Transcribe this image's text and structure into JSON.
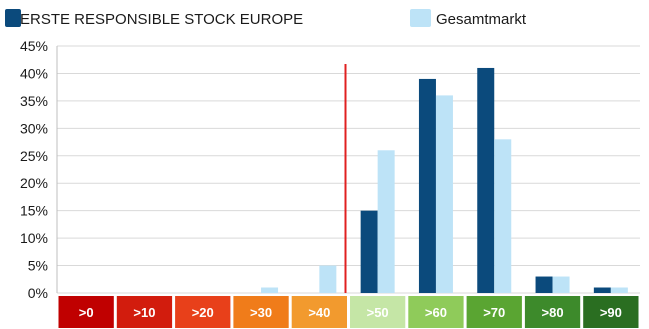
{
  "chart_data": {
    "type": "bar",
    "categories": [
      ">0",
      ">10",
      ">20",
      ">30",
      ">40",
      ">50",
      ">60",
      ">70",
      ">80",
      ">90"
    ],
    "category_colors": [
      "#c00000",
      "#d21c0d",
      "#e8401a",
      "#f07c1a",
      "#f29a2e",
      "#c5e6a6",
      "#8fcb5a",
      "#5aa532",
      "#3d8a2b",
      "#2a6e21"
    ],
    "series": [
      {
        "name": "ERSTE RESPONSIBLE STOCK EUROPE",
        "color": "#0b4a7c",
        "values": [
          0,
          0,
          0,
          0,
          0,
          15,
          39,
          41,
          3,
          1
        ]
      },
      {
        "name": "Gesamtmarkt",
        "color": "#bde3f7",
        "values": [
          0,
          0,
          0,
          1,
          5,
          26,
          36,
          28,
          3,
          1
        ]
      }
    ],
    "y_ticks": [
      "0%",
      "5%",
      "10%",
      "15%",
      "20%",
      "25%",
      "30%",
      "35%",
      "40%",
      "45%"
    ],
    "ylim": [
      0,
      45
    ],
    "reference_line": {
      "value": 45,
      "color": "#e02020"
    },
    "grid": true,
    "legend_position": "top-left"
  }
}
